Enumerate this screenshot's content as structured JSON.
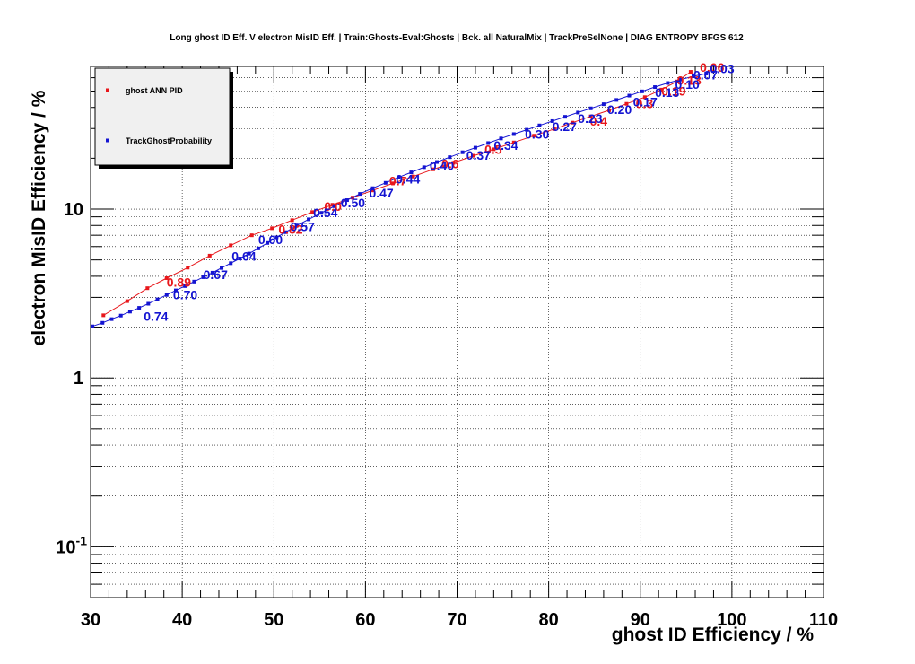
{
  "chart_data": {
    "type": "line",
    "title": "Long ghost ID Eff. V electron MisID Eff. | Train:Ghosts-Eval:Ghosts | Bck. all NaturalMix | TrackPreSelNone | DIAG ENTROPY BFGS 612",
    "xlabel": "ghost ID Efficiency / %",
    "ylabel": "electron MisID Efficiency / %",
    "xlim": [
      30,
      110
    ],
    "ylim": [
      0.05,
      70
    ],
    "y_scale": "log",
    "grid": true,
    "legend_position": "top-left",
    "x_ticks": [
      "30",
      "40",
      "50",
      "60",
      "70",
      "80",
      "90",
      "100",
      "110"
    ],
    "y_ticks": [
      {
        "value": 10,
        "base": "10",
        "exp": ""
      },
      {
        "value": 1,
        "base": "1",
        "exp": ""
      },
      {
        "value": 0.1,
        "base": "10",
        "exp": "-1"
      }
    ],
    "series": [
      {
        "name": "ghost ANN PID",
        "color": "#e8171b",
        "x": [
          31.4,
          34,
          36.2,
          38.3,
          40.6,
          43,
          45.3,
          47.6,
          49.8,
          52,
          54.2,
          56.4,
          58.6,
          60.8,
          63,
          65.2,
          67.4,
          69.6,
          71.8,
          74,
          76.2,
          78.4,
          80.6,
          82.6,
          84.6,
          86.6,
          88.5,
          90.5,
          92.3,
          94,
          95.5
        ],
        "y": [
          2.35,
          2.85,
          3.4,
          3.9,
          4.5,
          5.3,
          6.1,
          7.0,
          7.7,
          8.6,
          9.6,
          10.6,
          11.7,
          12.9,
          14.2,
          15.6,
          17.2,
          18.8,
          20.7,
          22.6,
          24.8,
          27.2,
          29.8,
          32.5,
          35.4,
          38.5,
          42,
          46,
          51,
          57,
          65
        ],
        "labels": [
          {
            "text": "0.89",
            "x": 38.3,
            "y": 3.7
          },
          {
            "text": "0.82",
            "x": 50.5,
            "y": 7.6
          },
          {
            "text": "0.0",
            "x": 55.5,
            "y": 10.4
          },
          {
            "text": "0.7",
            "x": 62.6,
            "y": 14.7
          },
          {
            "text": "0.6",
            "x": 68.3,
            "y": 18.5
          },
          {
            "text": "0.5",
            "x": 73,
            "y": 22.6
          },
          {
            "text": "0.4",
            "x": 84.5,
            "y": 33.2
          },
          {
            "text": "0.3",
            "x": 89.5,
            "y": 42
          },
          {
            "text": "0.19",
            "x": 92.3,
            "y": 50
          },
          {
            "text": "0.13",
            "x": 94,
            "y": 58
          },
          {
            "text": "0.06",
            "x": 96.5,
            "y": 69
          }
        ]
      },
      {
        "name": "TrackGhostProbability",
        "color": "#1414d2",
        "x": [
          30.2,
          31.3,
          32.3,
          33.3,
          34.3,
          35.3,
          36.3,
          37.3,
          38.3,
          39.3,
          40.3,
          41.3,
          42.3,
          43.3,
          44.3,
          45.3,
          46.3,
          47.3,
          48.3,
          49.3,
          50.3,
          51.3,
          52.5,
          53.8,
          55.2,
          56.6,
          58,
          59.4,
          60.8,
          62.2,
          63.6,
          65,
          66.4,
          67.8,
          69.2,
          70.6,
          72,
          73.4,
          74.8,
          76.2,
          77.6,
          79,
          80.4,
          81.8,
          83.2,
          84.6,
          86,
          87.4,
          88.8,
          90.2,
          91.6,
          93,
          94.4,
          95.8,
          97.2
        ],
        "y": [
          2.02,
          2.12,
          2.23,
          2.34,
          2.47,
          2.6,
          2.75,
          2.92,
          3.1,
          3.3,
          3.5,
          3.72,
          3.95,
          4.2,
          4.48,
          4.78,
          5.1,
          5.45,
          5.85,
          6.3,
          6.8,
          7.3,
          8.0,
          8.7,
          9.5,
          10.4,
          11.3,
          12.3,
          13.3,
          14.3,
          15.4,
          16.5,
          17.7,
          19,
          20.3,
          21.7,
          23.1,
          24.6,
          26.2,
          27.8,
          29.5,
          31.3,
          33.2,
          35.2,
          37.3,
          39.5,
          41.8,
          44.3,
          47,
          49.8,
          52.8,
          55.8,
          58.5,
          61.2,
          63.5
        ],
        "labels": [
          {
            "text": "0.74",
            "x": 35.8,
            "y": 2.32
          },
          {
            "text": "0.70",
            "x": 39,
            "y": 3.1
          },
          {
            "text": "0.67",
            "x": 42.3,
            "y": 4.1
          },
          {
            "text": "0.64",
            "x": 45.4,
            "y": 5.25
          },
          {
            "text": "0.60",
            "x": 48.3,
            "y": 6.6
          },
          {
            "text": "0.57",
            "x": 51.8,
            "y": 7.9
          },
          {
            "text": "0.54",
            "x": 54.3,
            "y": 9.5
          },
          {
            "text": "0.50",
            "x": 57.3,
            "y": 10.9
          },
          {
            "text": "0.47",
            "x": 60.4,
            "y": 12.5
          },
          {
            "text": "0.44",
            "x": 63.3,
            "y": 15.1
          },
          {
            "text": "0.40",
            "x": 67,
            "y": 18.1
          },
          {
            "text": "0.37",
            "x": 71,
            "y": 20.8
          },
          {
            "text": "0.34",
            "x": 74,
            "y": 23.9
          },
          {
            "text": "0.30",
            "x": 77.4,
            "y": 27.8
          },
          {
            "text": "0.27",
            "x": 80.4,
            "y": 30.9
          },
          {
            "text": "0.23",
            "x": 83.2,
            "y": 34.5
          },
          {
            "text": "0.20",
            "x": 86.4,
            "y": 38.9
          },
          {
            "text": "0.17",
            "x": 89.2,
            "y": 43.2
          },
          {
            "text": "0.13",
            "x": 91.6,
            "y": 49.1
          },
          {
            "text": "0.10",
            "x": 93.8,
            "y": 54.8
          },
          {
            "text": "0.07",
            "x": 95.8,
            "y": 62.3
          },
          {
            "text": "0.03",
            "x": 97.6,
            "y": 68
          }
        ]
      }
    ]
  }
}
